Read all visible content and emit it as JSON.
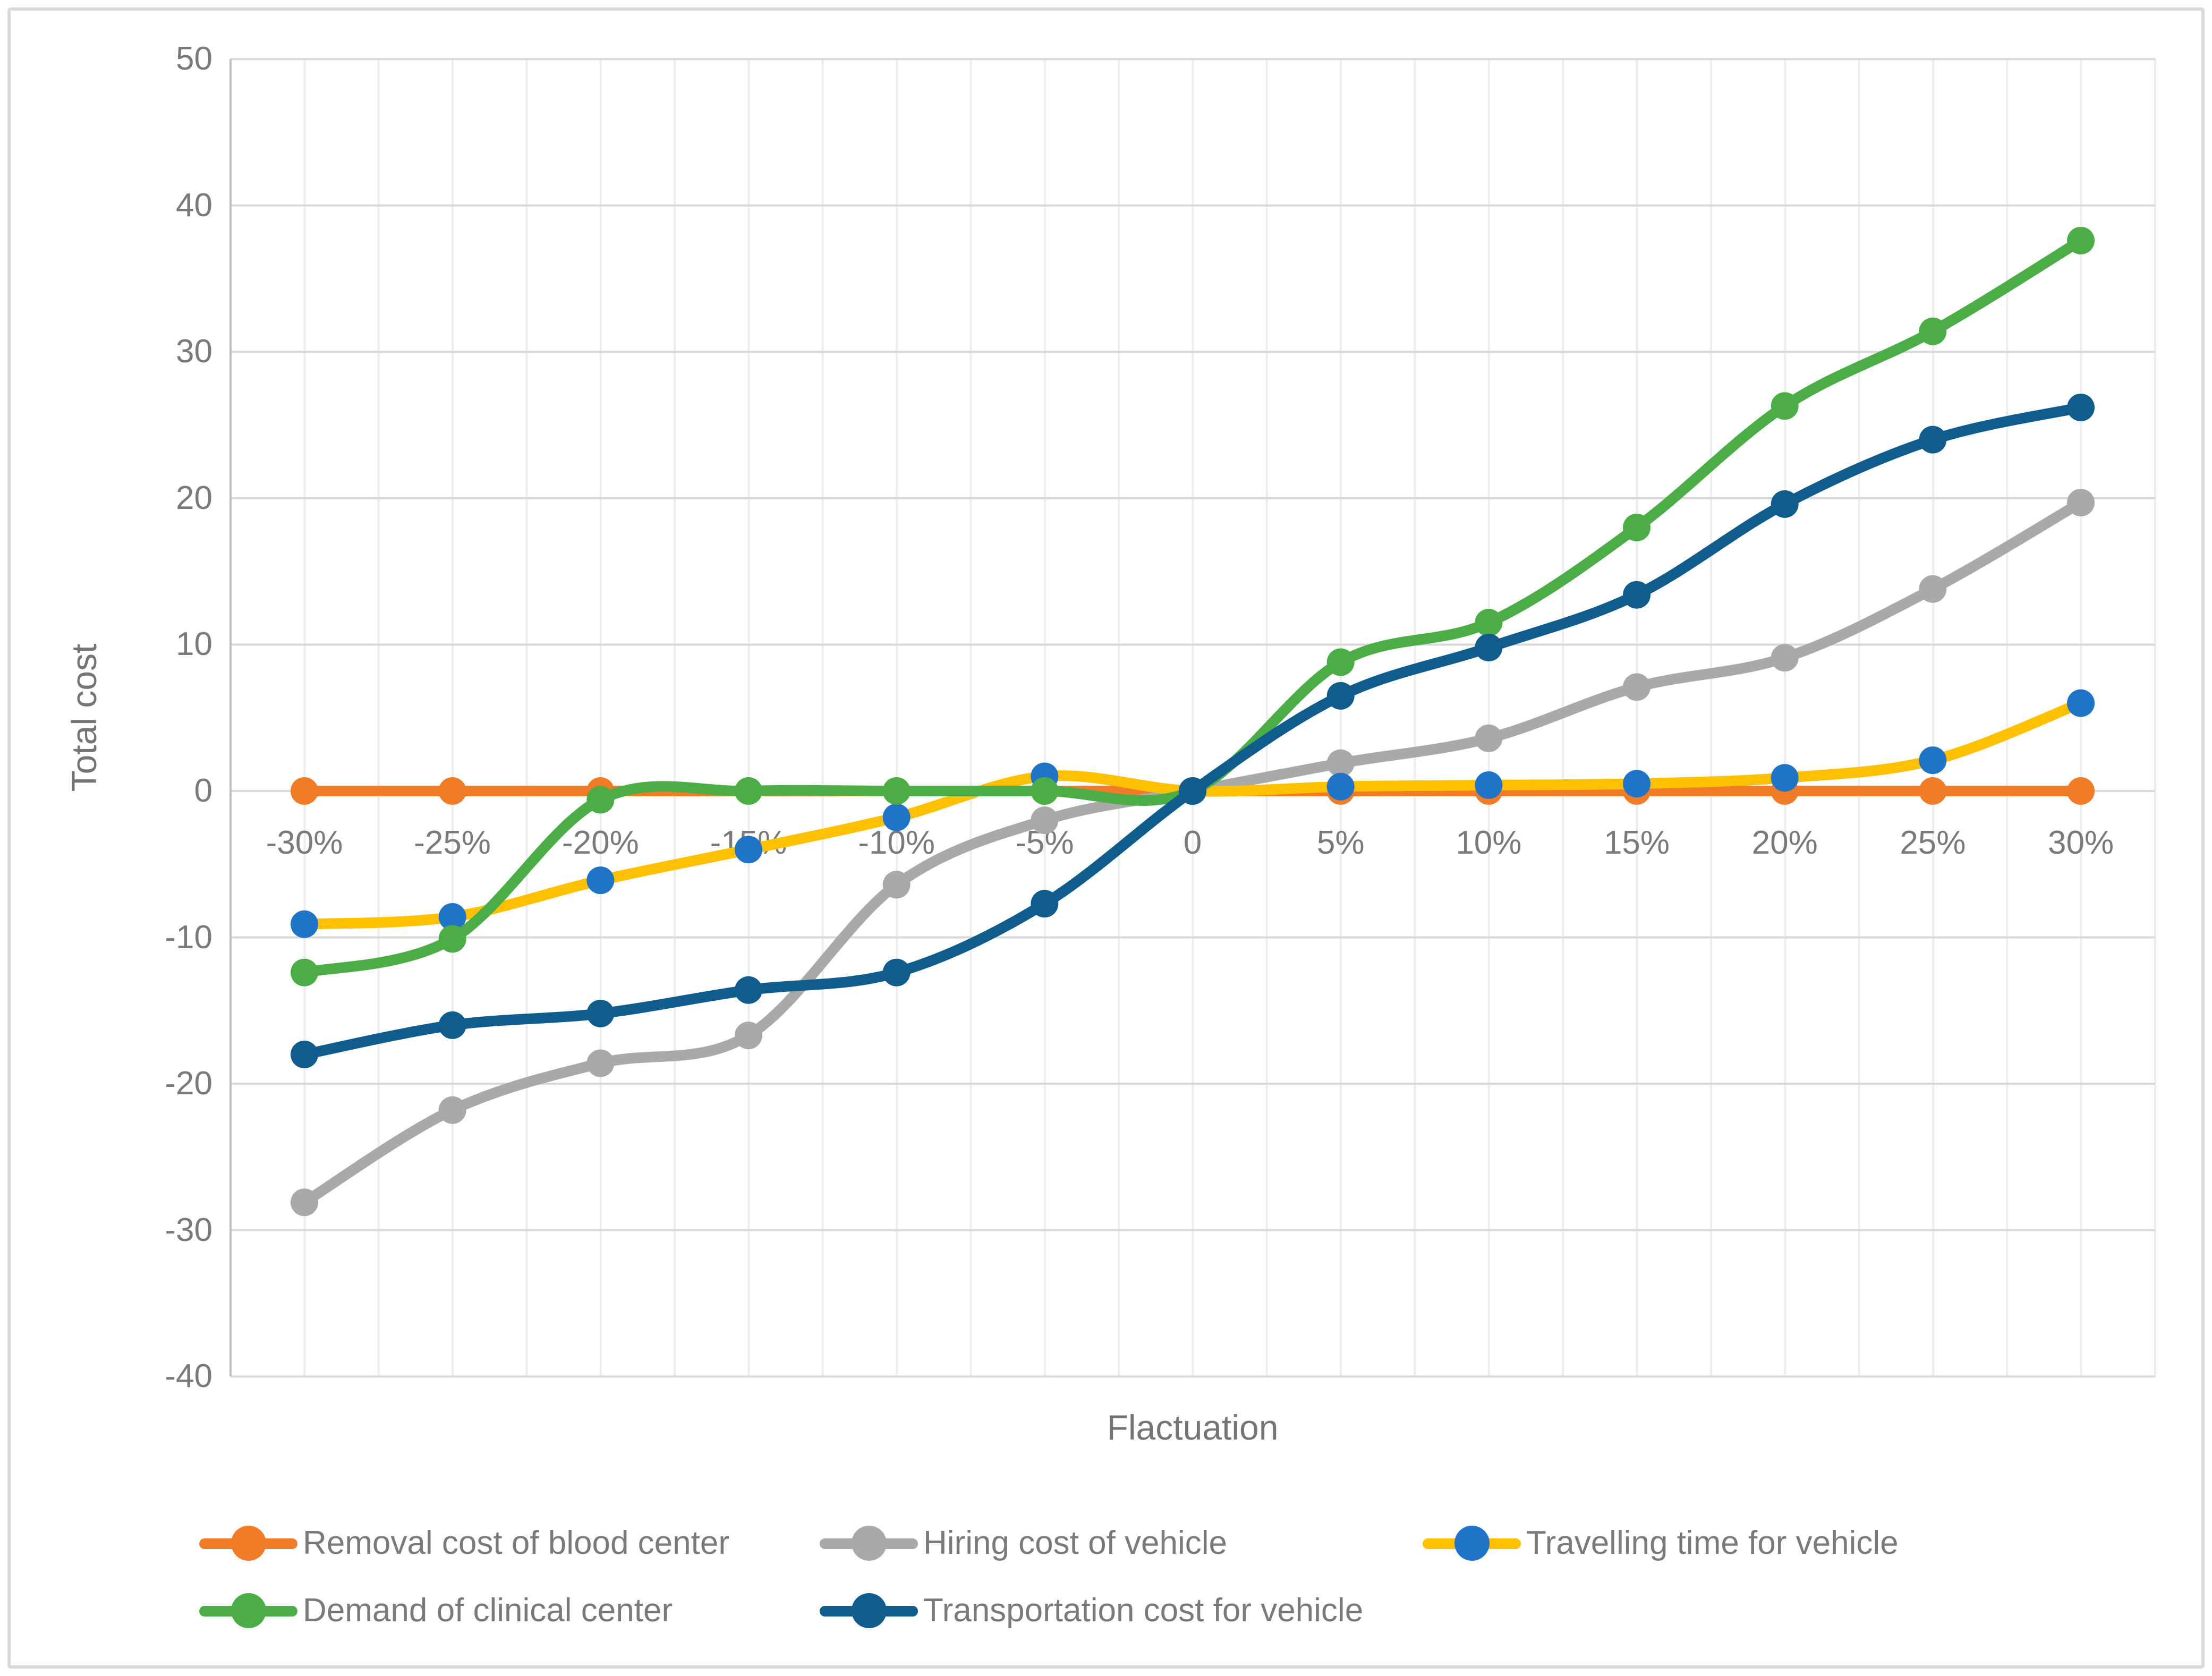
{
  "chart_data": {
    "type": "line",
    "title": "",
    "xlabel": "Flactuation",
    "ylabel": "Total cost",
    "categories": [
      "-30%",
      "-25%",
      "-20%",
      "-15%",
      "-10%",
      "-5%",
      "0",
      "5%",
      "10%",
      "15%",
      "20%",
      "25%",
      "30%"
    ],
    "y_ticks": [
      50,
      40,
      30,
      20,
      10,
      0,
      -10,
      -20,
      -30,
      -40
    ],
    "ylim": [
      -40,
      50
    ],
    "grid": true,
    "smooth_lines": true,
    "legend_position": "bottom",
    "colors": {
      "horizontal_gridline": "#D9D9D9",
      "vertical_gridline": "#EDEDED",
      "axis_line": "#BFBFBF",
      "tick_text": "#7A7A7A",
      "frame_border": "#D9D9D9",
      "background": "#FFFFFF"
    },
    "series": [
      {
        "name": "Removal cost of blood center",
        "color": "#F07C28",
        "marker_color": "#F07C28",
        "values": [
          0,
          0,
          0,
          0,
          0,
          0,
          0,
          0,
          0,
          0,
          0,
          0,
          0
        ]
      },
      {
        "name": "Hiring cost of vehicle",
        "color": "#A9A9A9",
        "marker_color": "#A9A9A9",
        "values": [
          -28.1,
          -21.8,
          -18.6,
          -16.7,
          -6.4,
          -2.0,
          0,
          1.9,
          3.6,
          7.1,
          9.1,
          13.8,
          19.7
        ]
      },
      {
        "name": "Travelling time for vehicle",
        "color": "#FFC000",
        "marker_color": "#1F74C8",
        "values": [
          -9.1,
          -8.6,
          -6.1,
          -4.0,
          -1.8,
          1.0,
          0,
          0.3,
          0.4,
          0.5,
          0.9,
          2.1,
          6.0
        ]
      },
      {
        "name": "Demand of clinical center",
        "color": "#4BAD46",
        "marker_color": "#4BAD46",
        "values": [
          -12.4,
          -10.1,
          -0.6,
          0,
          0,
          0,
          0,
          8.8,
          11.5,
          18.0,
          26.3,
          31.4,
          37.6
        ]
      },
      {
        "name": "Transportation cost for vehicle",
        "color": "#0F5C8D",
        "marker_color": "#0F5C8D",
        "values": [
          -18.0,
          -16.0,
          -15.2,
          -13.6,
          -12.4,
          -7.7,
          0,
          6.5,
          9.8,
          13.4,
          19.6,
          24.0,
          26.2
        ]
      }
    ]
  }
}
